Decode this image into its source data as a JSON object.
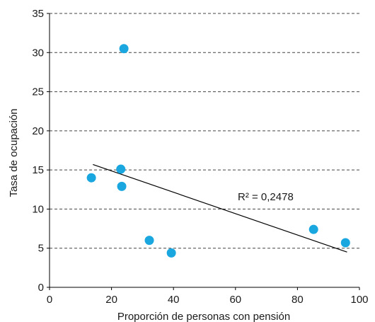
{
  "chart_data": {
    "type": "scatter",
    "title": "",
    "xlabel": "Proporción de personas con pensión",
    "ylabel": "Tasa de ocupación",
    "xlim": [
      0,
      100
    ],
    "ylim": [
      0,
      35
    ],
    "xticks": [
      "0",
      "20",
      "40",
      "60",
      "80",
      "100"
    ],
    "yticks": [
      "0",
      "5",
      "10",
      "15",
      "20",
      "25",
      "30",
      "35"
    ],
    "grid": "horizontal-dashed",
    "marker_color": "#1aa7e0",
    "points": [
      {
        "x": 13.5,
        "y": 14.0
      },
      {
        "x": 23.0,
        "y": 15.1
      },
      {
        "x": 23.3,
        "y": 12.9
      },
      {
        "x": 24.0,
        "y": 30.5
      },
      {
        "x": 32.2,
        "y": 6.0
      },
      {
        "x": 39.3,
        "y": 4.4
      },
      {
        "x": 85.2,
        "y": 7.4
      },
      {
        "x": 95.5,
        "y": 5.7
      }
    ],
    "trendline": {
      "x1": 14,
      "y1": 15.7,
      "x2": 96,
      "y2": 4.5,
      "label": "R² = 0,2478"
    }
  }
}
